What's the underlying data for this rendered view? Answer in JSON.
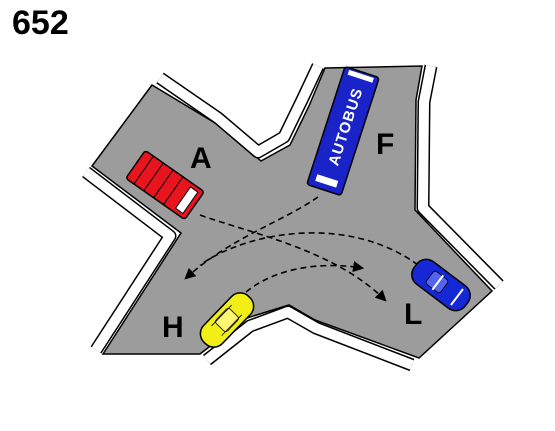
{
  "question_number": "652",
  "labels": {
    "a": "A",
    "f": "F",
    "h": "H",
    "l": "L"
  },
  "bus_text": "AUTOBUS",
  "colors": {
    "road": "#9c9c9c",
    "red_vehicle": "#e8141e",
    "bus": "#1a23c8",
    "blue_car": "#1628d6",
    "yellow_car": "#f2ef16"
  }
}
